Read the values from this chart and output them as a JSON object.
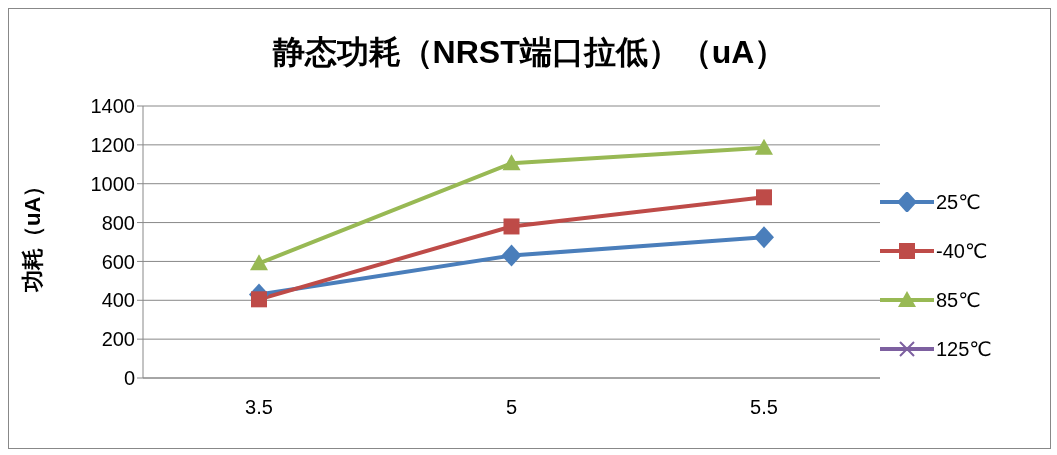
{
  "chart_data": {
    "type": "line",
    "title": "静态功耗（NRST端口拉低）（uA）",
    "ylabel": "功耗（uA）",
    "categories": [
      "3.5",
      "5",
      "5.5"
    ],
    "series": [
      {
        "name": "25℃",
        "color": "#4a7ebb",
        "marker": "diamond",
        "values": [
          430,
          630,
          725
        ]
      },
      {
        "name": "-40℃",
        "color": "#be4b48",
        "marker": "square",
        "values": [
          405,
          780,
          930
        ]
      },
      {
        "name": "85℃",
        "color": "#98b954",
        "marker": "triangle",
        "values": [
          590,
          1105,
          1185
        ]
      },
      {
        "name": "125℃",
        "color": "#7d60a0",
        "marker": "cross",
        "values": [
          null,
          null,
          null
        ]
      }
    ],
    "ylim": [
      0,
      1400
    ],
    "yticks": [
      0,
      200,
      400,
      600,
      800,
      1000,
      1200,
      1400
    ],
    "grid": "y",
    "legend": "right",
    "line_style": "solid"
  }
}
